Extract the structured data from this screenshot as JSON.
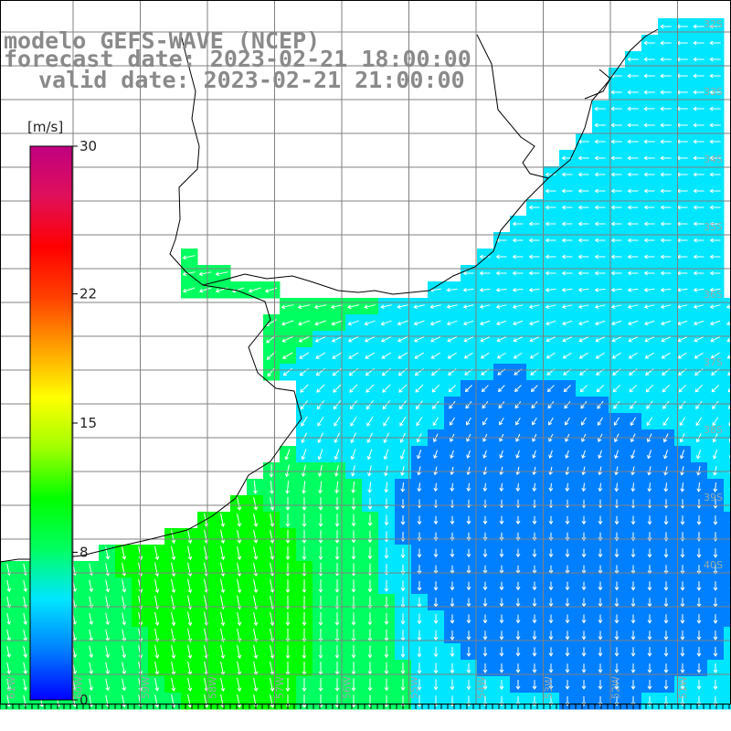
{
  "title": {
    "line1": "modelo GEFS-WAVE (NCEP)",
    "line2": "forecast date: 2023-02-21 18:00:00",
    "line3": "valid date: 2023-02-21 21:00:00"
  },
  "colorbar": {
    "unit": "[m/s]",
    "ticks": [
      "30",
      "22",
      "15",
      "8",
      "0"
    ],
    "tick_values": [
      30,
      22,
      15,
      8,
      0
    ],
    "range": [
      0,
      30
    ],
    "colors": [
      "#0000ff",
      "#0080ff",
      "#00e6ff",
      "#00ff60",
      "#00ff00",
      "#a0ff00",
      "#ffff00",
      "#ffa000",
      "#ff4000",
      "#ff0000",
      "#e0105a",
      "#c00080"
    ]
  },
  "axes": {
    "lat_labels": [
      "32S",
      "33S",
      "34S",
      "35S",
      "36S",
      "37S",
      "38S",
      "39S",
      "40S"
    ],
    "lon_labels": [
      "61W",
      "60W",
      "59W",
      "58W",
      "57W",
      "56W",
      "55W",
      "54W",
      "53W",
      "52W",
      "51W",
      "50W"
    ]
  },
  "chart_data": {
    "type": "heatmap",
    "title": "modelo GEFS-WAVE (NCEP)",
    "subtitle": "forecast date: 2023-02-21 18:00:00 / valid date: 2023-02-21 21:00:00",
    "field": "wind speed",
    "unit": "[m/s]",
    "value_range": [
      0,
      30
    ],
    "lon_range": [
      -62,
      -50
    ],
    "lat_range": [
      -31,
      -40.5
    ],
    "sample_values_m_s": [
      {
        "lon": -58.5,
        "lat": -38.8,
        "speed": 11
      },
      {
        "lon": -57.5,
        "lat": -38.3,
        "speed": 10
      },
      {
        "lon": -56.5,
        "lat": -36.5,
        "speed": 7
      },
      {
        "lon": -54.0,
        "lat": -37.8,
        "speed": 3
      },
      {
        "lon": -52.0,
        "lat": -34.5,
        "speed": 6
      },
      {
        "lon": -51.0,
        "lat": -32.0,
        "speed": 7
      },
      {
        "lon": -58.0,
        "lat": -34.8,
        "speed": 9
      },
      {
        "lon": -61.5,
        "lat": -39.5,
        "speed": 8
      }
    ],
    "grid": true
  }
}
